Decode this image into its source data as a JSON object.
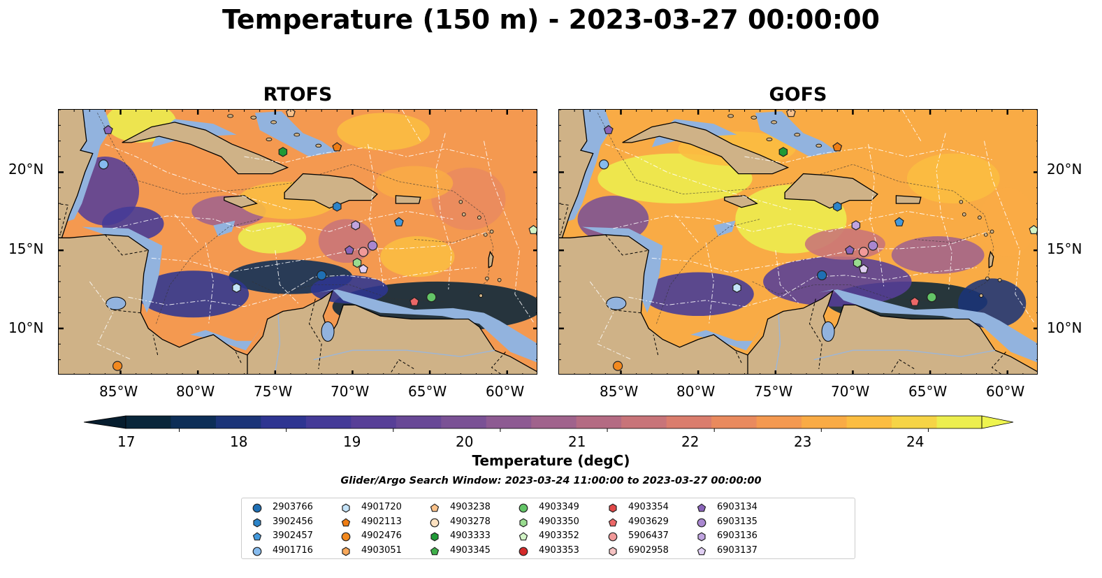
{
  "title": "Temperature (150 m) - 2023-03-27 00:00:00",
  "panels": [
    {
      "title": "RTOFS",
      "variant": "rtofs"
    },
    {
      "title": "GOFS",
      "variant": "gofs"
    }
  ],
  "lat_ticks": [
    "20°N",
    "15°N",
    "10°N"
  ],
  "lon_ticks": [
    "85°W",
    "80°W",
    "75°W",
    "70°W",
    "65°W",
    "60°W"
  ],
  "colorbar": {
    "label": "Temperature (degC)",
    "ticks": [
      "17",
      "18",
      "19",
      "20",
      "21",
      "22",
      "23",
      "24"
    ],
    "min": 16.5,
    "max": 24.5,
    "step": 0.5,
    "colors": [
      "#09263a",
      "#0d2e57",
      "#1b3478",
      "#2e3591",
      "#443a97",
      "#573f97",
      "#684896",
      "#7a5195",
      "#8d5a92",
      "#a0638c",
      "#b46b83",
      "#c87479",
      "#da7d6d",
      "#e98a5e",
      "#f49950",
      "#f9ab45",
      "#fbbd41",
      "#f6d446",
      "#ecee4f"
    ],
    "under_color": "#061d2e",
    "over_color": "#eef44f"
  },
  "search_window": "Glider/Argo Search Window: 2023-03-24 11:00:00 to 2023-03-27 00:00:00",
  "map_colors": {
    "land": "#cfb287",
    "shelf": "#92b3de",
    "coast": "#000000",
    "border": "#000000"
  },
  "legend": [
    {
      "label": "2903766",
      "marker": "circle",
      "color": "#1f6fb4"
    },
    {
      "label": "3902456",
      "marker": "hexagon",
      "color": "#2c84c9"
    },
    {
      "label": "3902457",
      "marker": "pentagon",
      "color": "#4399dc"
    },
    {
      "label": "4901716",
      "marker": "circle",
      "color": "#86bbee"
    },
    {
      "label": "4901720",
      "marker": "hexagon",
      "color": "#c4e3f8"
    },
    {
      "label": "4902113",
      "marker": "pentagon",
      "color": "#ef7d14"
    },
    {
      "label": "4902476",
      "marker": "circle",
      "color": "#f2891f"
    },
    {
      "label": "4903051",
      "marker": "hexagon",
      "color": "#f8a85a"
    },
    {
      "label": "4903238",
      "marker": "pentagon",
      "color": "#fbc28a"
    },
    {
      "label": "4903278",
      "marker": "circle",
      "color": "#fde1c0"
    },
    {
      "label": "4903333",
      "marker": "hexagon",
      "color": "#1f9a36"
    },
    {
      "label": "4903345",
      "marker": "pentagon",
      "color": "#3fb04a"
    },
    {
      "label": "4903349",
      "marker": "circle",
      "color": "#63c567"
    },
    {
      "label": "4903350",
      "marker": "hexagon",
      "color": "#99dc8f"
    },
    {
      "label": "4903352",
      "marker": "pentagon",
      "color": "#d2f4c6"
    },
    {
      "label": "4903353",
      "marker": "circle",
      "color": "#d42a2a"
    },
    {
      "label": "4903354",
      "marker": "hexagon",
      "color": "#e04848"
    },
    {
      "label": "4903629",
      "marker": "pentagon",
      "color": "#ec6767"
    },
    {
      "label": "5906437",
      "marker": "circle",
      "color": "#f19999"
    },
    {
      "label": "6902958",
      "marker": "hexagon",
      "color": "#f6c3c3"
    },
    {
      "label": "6903134",
      "marker": "pentagon",
      "color": "#8a64ba"
    },
    {
      "label": "6903135",
      "marker": "circle",
      "color": "#a987d0"
    },
    {
      "label": "6903136",
      "marker": "hexagon",
      "color": "#c0a4e0"
    },
    {
      "label": "6903137",
      "marker": "pentagon",
      "color": "#e0cff3"
    }
  ],
  "map_extent": {
    "lon": [
      -89,
      -58
    ],
    "lat": [
      7,
      24
    ]
  },
  "floats": [
    {
      "id": "6903134",
      "lon": -85.8,
      "lat": 22.7
    },
    {
      "id": "4901716",
      "lon": -86.1,
      "lat": 20.5
    },
    {
      "id": "4902476",
      "lon": -85.2,
      "lat": 7.6
    },
    {
      "id": "4903238",
      "lon": -74.0,
      "lat": 23.8
    },
    {
      "id": "4903333",
      "lon": -74.5,
      "lat": 21.3
    },
    {
      "id": "4902113",
      "lon": -71.0,
      "lat": 21.6
    },
    {
      "id": "3902456",
      "lon": -71.0,
      "lat": 17.8
    },
    {
      "id": "3902457",
      "lon": -67.0,
      "lat": 16.8
    },
    {
      "id": "6903136",
      "lon": -69.8,
      "lat": 16.6
    },
    {
      "id": "6903134",
      "lon": -70.2,
      "lat": 15.0
    },
    {
      "id": "5906437",
      "lon": -69.3,
      "lat": 14.9
    },
    {
      "id": "6903135",
      "lon": -68.7,
      "lat": 15.3
    },
    {
      "id": "4903350",
      "lon": -69.7,
      "lat": 14.2
    },
    {
      "id": "6903137",
      "lon": -69.3,
      "lat": 13.8
    },
    {
      "id": "2903766",
      "lon": -72.0,
      "lat": 13.4
    },
    {
      "id": "4901720",
      "lon": -77.5,
      "lat": 12.6
    },
    {
      "id": "4903629",
      "lon": -66.0,
      "lat": 11.7
    },
    {
      "id": "4903349",
      "lon": -64.9,
      "lat": 12.0
    },
    {
      "id": "4903352",
      "lon": -58.3,
      "lat": 16.3
    }
  ]
}
